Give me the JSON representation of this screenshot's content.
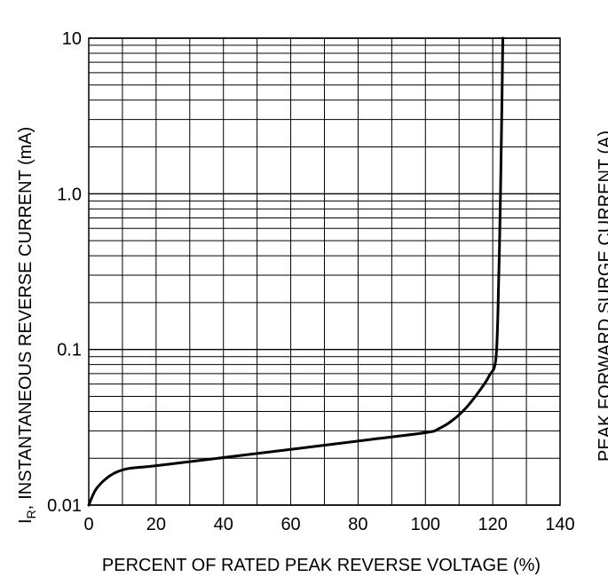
{
  "chart_data": {
    "type": "line",
    "title": "",
    "xlabel": "PERCENT OF RATED  PEAK REVERSE VOLTAGE (%)",
    "ylabel": "INSTANTANEOUS REVERSE CURRENT (mA)",
    "ylabel_prefix": "I",
    "ylabel_subscript": "R",
    "ylabel_sep": ",",
    "xlim": [
      0,
      140
    ],
    "ylim": [
      0.01,
      10
    ],
    "yscale": "log",
    "grid": true,
    "x_ticks": [
      {
        "value": 0,
        "label": "0"
      },
      {
        "value": 20,
        "label": "20"
      },
      {
        "value": 40,
        "label": "40"
      },
      {
        "value": 60,
        "label": "60"
      },
      {
        "value": 80,
        "label": "80"
      },
      {
        "value": 100,
        "label": "100"
      },
      {
        "value": 120,
        "label": "120"
      },
      {
        "value": 140,
        "label": "140"
      }
    ],
    "y_ticks": [
      {
        "value": 0.01,
        "label": "0.01"
      },
      {
        "value": 0.1,
        "label": "0.1"
      },
      {
        "value": 1,
        "label": "1.0"
      },
      {
        "value": 10,
        "label": "10"
      }
    ],
    "series": [
      {
        "color": "#000000",
        "x": [
          0,
          2,
          5,
          8,
          12,
          20,
          40,
          60,
          80,
          100,
          104,
          108,
          112,
          116,
          119,
          121,
          121.8,
          122.3,
          122.7,
          123
        ],
        "y": [
          0.01,
          0.0125,
          0.0147,
          0.0162,
          0.0172,
          0.0179,
          0.0202,
          0.0228,
          0.0258,
          0.0292,
          0.031,
          0.035,
          0.042,
          0.054,
          0.068,
          0.09,
          0.3,
          1.0,
          3.5,
          10
        ]
      }
    ]
  },
  "right_edge_text": "PEAK FORWARD SURGE CURRENT (A)"
}
